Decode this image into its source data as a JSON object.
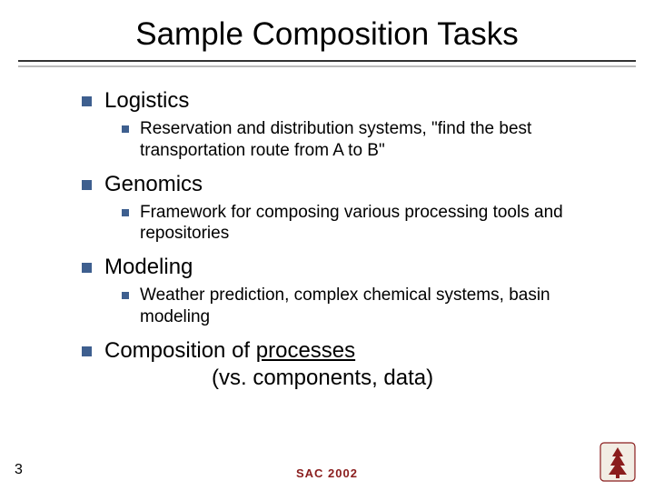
{
  "title": "Sample Composition Tasks",
  "bullet_color": "#3e5f8f",
  "rule_color": "#333333",
  "rule_shadow_color": "#bbbbbb",
  "l1_fontsize": 24,
  "l2_fontsize": 19,
  "items": [
    {
      "label": "Logistics",
      "sub": "Reservation and distribution systems,\n\"find the best transportation route from A to B\""
    },
    {
      "label": "Genomics",
      "sub": "Framework for composing various processing tools and repositories"
    },
    {
      "label": "Modeling",
      "sub": "Weather prediction, complex chemical systems, basin modeling"
    },
    {
      "label_html": "Composition of <span class=\"underline\">processes</span><br><span class=\"indent2\">(vs. components, data)</span>"
    }
  ],
  "page_number": "3",
  "footer": "SAC 2002",
  "logo_colors": {
    "primary": "#8a1d1d",
    "bg": "#f2ede4"
  }
}
